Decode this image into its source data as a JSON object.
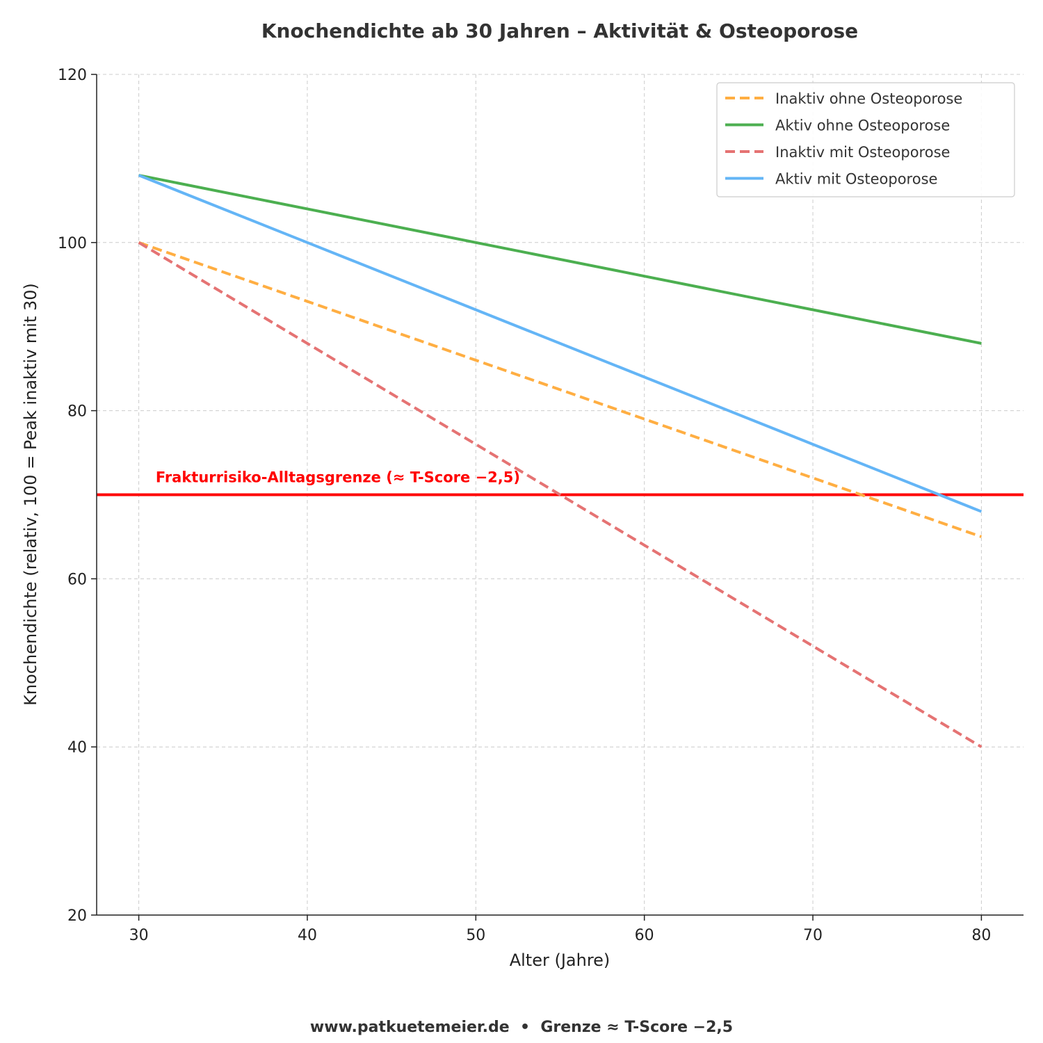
{
  "chart_data": {
    "type": "line",
    "title": "Knochendichte ab 30 Jahren – Aktivität & Osteoporose",
    "xlabel": "Alter (Jahre)",
    "ylabel": "Knochendichte (relativ, 100 = Peak inaktiv mit 30)",
    "xlim": [
      27.5,
      82.5
    ],
    "ylim": [
      20,
      120
    ],
    "xticks": [
      30,
      40,
      50,
      60,
      70,
      80
    ],
    "yticks": [
      20,
      40,
      60,
      80,
      100,
      120
    ],
    "grid": true,
    "legend_position": "top-right",
    "x": [
      30,
      40,
      50,
      60,
      70,
      80
    ],
    "series": [
      {
        "name": "Inaktiv ohne Osteoporose",
        "values": [
          100,
          93,
          86,
          79,
          72,
          65
        ],
        "color": "#ffae42",
        "dashed": true
      },
      {
        "name": "Aktiv ohne Osteoporose",
        "values": [
          108,
          104,
          100,
          96,
          92,
          88
        ],
        "color": "#4caf50",
        "dashed": false
      },
      {
        "name": "Inaktiv mit Osteoporose",
        "values": [
          100,
          88,
          76,
          64,
          52,
          40
        ],
        "color": "#e57373",
        "dashed": true
      },
      {
        "name": "Aktiv mit Osteoporose",
        "values": [
          108,
          100,
          92,
          84,
          76,
          68
        ],
        "color": "#64b5f6",
        "dashed": false
      }
    ],
    "threshold": {
      "value": 70,
      "label": "Frakturrisiko-Alltagsgrenze (≈ T-Score −2,5)",
      "color": "#ff0000"
    },
    "footer": "www.patkuetemeier.de  •  Grenze ≈ T-Score −2,5"
  }
}
